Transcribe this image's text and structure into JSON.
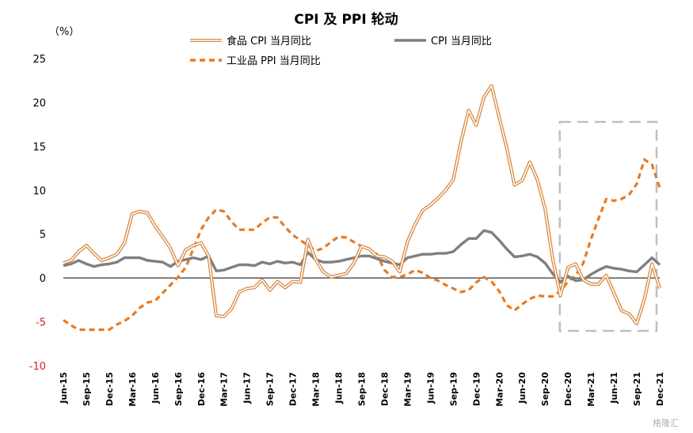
{
  "chart_data": {
    "type": "line",
    "title": "CPI 及 PPI 轮动",
    "unit_label": "（%）",
    "ylim": [
      -10,
      25
    ],
    "yticks": [
      -10,
      -5,
      0,
      5,
      10,
      15,
      20,
      25
    ],
    "xtick_labels": [
      "Jun-15",
      "Sep-15",
      "Dec-15",
      "Mar-16",
      "Jun-16",
      "Sep-16",
      "Dec-16",
      "Mar-17",
      "Jun-17",
      "Sep-17",
      "Dec-17",
      "Mar-18",
      "Jun-18",
      "Sep-18",
      "Dec-18",
      "Mar-19",
      "Jun-19",
      "Sep-19",
      "Dec-19",
      "Mar-20",
      "Jun-20",
      "Sep-20",
      "Dec-20",
      "Mar-21",
      "Jun-21",
      "Sep-21",
      "Dec-21"
    ],
    "x": [
      "2015-06",
      "2015-07",
      "2015-08",
      "2015-09",
      "2015-10",
      "2015-11",
      "2015-12",
      "2016-01",
      "2016-02",
      "2016-03",
      "2016-04",
      "2016-05",
      "2016-06",
      "2016-07",
      "2016-08",
      "2016-09",
      "2016-10",
      "2016-11",
      "2016-12",
      "2017-01",
      "2017-02",
      "2017-03",
      "2017-04",
      "2017-05",
      "2017-06",
      "2017-07",
      "2017-08",
      "2017-09",
      "2017-10",
      "2017-11",
      "2017-12",
      "2018-01",
      "2018-02",
      "2018-03",
      "2018-04",
      "2018-05",
      "2018-06",
      "2018-07",
      "2018-08",
      "2018-09",
      "2018-10",
      "2018-11",
      "2018-12",
      "2019-01",
      "2019-02",
      "2019-03",
      "2019-04",
      "2019-05",
      "2019-06",
      "2019-07",
      "2019-08",
      "2019-09",
      "2019-10",
      "2019-11",
      "2019-12",
      "2020-01",
      "2020-02",
      "2020-03",
      "2020-04",
      "2020-05",
      "2020-06",
      "2020-07",
      "2020-08",
      "2020-09",
      "2020-10",
      "2020-11",
      "2020-12",
      "2021-01",
      "2021-02",
      "2021-03",
      "2021-04",
      "2021-05",
      "2021-06",
      "2021-07",
      "2021-08",
      "2021-09",
      "2021-10",
      "2021-11",
      "2021-12"
    ],
    "series": [
      {
        "name": "食品 CPI 当月同比",
        "style": "double-line",
        "color": "#d98840",
        "values": [
          1.7,
          2.0,
          3.0,
          3.7,
          2.8,
          2.0,
          2.3,
          2.7,
          4.0,
          7.3,
          7.6,
          7.4,
          5.9,
          4.7,
          3.4,
          1.4,
          3.2,
          3.7,
          4.0,
          2.5,
          -4.3,
          -4.4,
          -3.5,
          -1.6,
          -1.2,
          -1.1,
          -0.2,
          -1.4,
          -0.4,
          -1.1,
          -0.4,
          -0.5,
          4.4,
          2.1,
          0.7,
          0.1,
          0.3,
          0.5,
          1.7,
          3.6,
          3.3,
          2.5,
          2.4,
          1.9,
          0.7,
          4.1,
          6.1,
          7.7,
          8.3,
          9.1,
          10.0,
          11.2,
          15.5,
          19.1,
          17.4,
          20.6,
          21.9,
          18.3,
          14.8,
          10.6,
          11.1,
          13.2,
          11.2,
          7.9,
          2.2,
          -2.0,
          1.2,
          1.6,
          -0.2,
          -0.7,
          -0.7,
          0.3,
          -1.7,
          -3.7,
          -4.1,
          -5.2,
          -2.4,
          1.6,
          -1.2
        ]
      },
      {
        "name": "CPI 当月同比",
        "style": "solid",
        "color": "#7f7f7f",
        "values": [
          1.4,
          1.6,
          2.0,
          1.6,
          1.3,
          1.5,
          1.6,
          1.8,
          2.3,
          2.3,
          2.3,
          2.0,
          1.9,
          1.8,
          1.3,
          1.9,
          2.1,
          2.3,
          2.1,
          2.5,
          0.8,
          0.9,
          1.2,
          1.5,
          1.5,
          1.4,
          1.8,
          1.6,
          1.9,
          1.7,
          1.8,
          1.5,
          2.9,
          2.1,
          1.8,
          1.8,
          1.9,
          2.1,
          2.3,
          2.5,
          2.5,
          2.2,
          1.9,
          1.7,
          1.5,
          2.3,
          2.5,
          2.7,
          2.7,
          2.8,
          2.8,
          3.0,
          3.8,
          4.5,
          4.5,
          5.4,
          5.2,
          4.3,
          3.3,
          2.4,
          2.5,
          2.7,
          2.4,
          1.7,
          0.5,
          -0.5,
          0.2,
          -0.3,
          -0.2,
          0.4,
          0.9,
          1.3,
          1.1,
          1.0,
          0.8,
          0.7,
          1.5,
          2.3,
          1.5
        ]
      },
      {
        "name": "工业品 PPI 当月同比",
        "style": "dashed",
        "color": "#e87a22",
        "values": [
          -4.8,
          -5.4,
          -5.9,
          -5.9,
          -5.9,
          -5.9,
          -5.9,
          -5.3,
          -4.9,
          -4.3,
          -3.4,
          -2.8,
          -2.6,
          -1.7,
          -0.8,
          0.1,
          1.2,
          3.3,
          5.5,
          6.9,
          7.8,
          7.6,
          6.4,
          5.5,
          5.5,
          5.5,
          6.3,
          6.9,
          6.9,
          5.8,
          4.9,
          4.3,
          3.7,
          3.1,
          3.4,
          4.1,
          4.7,
          4.6,
          4.1,
          3.6,
          3.3,
          2.7,
          0.9,
          0.1,
          0.1,
          0.4,
          0.9,
          0.6,
          0.0,
          -0.3,
          -0.8,
          -1.2,
          -1.6,
          -1.4,
          -0.5,
          0.1,
          -0.4,
          -1.5,
          -3.1,
          -3.7,
          -3.0,
          -2.4,
          -2.0,
          -2.1,
          -2.1,
          -1.5,
          -0.4,
          0.3,
          1.7,
          4.4,
          6.8,
          9.0,
          8.8,
          9.0,
          9.5,
          10.7,
          13.5,
          12.9,
          10.3
        ]
      }
    ],
    "highlight_box": {
      "from": "2021-01",
      "to": "2021-12",
      "style": "dashed",
      "color": "#bfbfbf"
    },
    "legend_position": "top"
  },
  "watermark": "格隆汇"
}
